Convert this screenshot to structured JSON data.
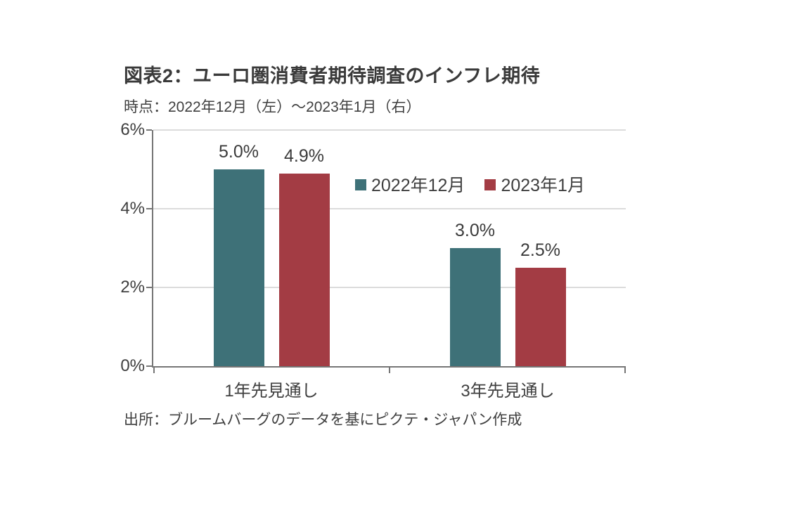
{
  "header": {
    "title": "図表2：ユーロ圏消費者期待調査のインフレ期待",
    "subtitle": "時点：2022年12月（左）～2023年1月（右）"
  },
  "source_note": "出所：ブルームバーグのデータを基にピクテ・ジャパン作成",
  "colors": {
    "series_2022_12": "#3E7178",
    "series_2023_01": "#A33C44",
    "axis": "#767676",
    "gridline": "#DCDCDC",
    "text": "#3B3B3B",
    "background": "#FFFFFF"
  },
  "chart_data": {
    "type": "bar",
    "title": "図表2：ユーロ圏消費者期待調査のインフレ期待",
    "subtitle": "時点：2022年12月（左）～2023年1月（右）",
    "categories": [
      "1年先見通し",
      "3年先見通し"
    ],
    "series": [
      {
        "name": "2022年12月",
        "color": "#3E7178",
        "values": [
          5.0,
          3.0
        ],
        "labels": [
          "5.0%",
          "3.0%"
        ]
      },
      {
        "name": "2023年1月",
        "color": "#A33C44",
        "values": [
          4.9,
          2.5
        ],
        "labels": [
          "4.9%",
          "2.5%"
        ]
      }
    ],
    "xlabel": "",
    "ylabel": "",
    "ylim": [
      0,
      6
    ],
    "yticks": [
      0,
      2,
      4,
      6
    ],
    "ytick_labels": [
      "0%",
      "2%",
      "4%",
      "6%"
    ],
    "unit": "%",
    "grid": true,
    "legend_position": "inside-top",
    "source": "出所：ブルームバーグのデータを基にピクテ・ジャパン作成"
  }
}
